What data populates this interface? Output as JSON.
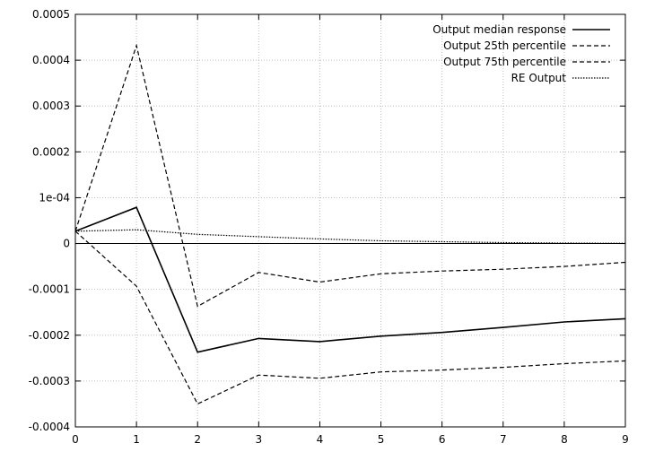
{
  "chart_data": {
    "type": "line",
    "title": "",
    "xlabel": "",
    "ylabel": "",
    "xlim": [
      0,
      9
    ],
    "ylim": [
      -0.0004,
      0.0005
    ],
    "grid": true,
    "legend_position": "top-right",
    "x": [
      0,
      1,
      2,
      3,
      4,
      5,
      6,
      7,
      8,
      9
    ],
    "x_tick_labels": [
      "0",
      "1",
      "2",
      "3",
      "4",
      "5",
      "6",
      "7",
      "8",
      "9"
    ],
    "y_ticks": [
      0.0005,
      0.0004,
      0.0003,
      0.0002,
      0.0001,
      0,
      -0.0001,
      -0.0002,
      -0.0003,
      -0.0004
    ],
    "y_tick_labels": [
      "0.0005",
      "0.0004",
      "0.0003",
      "0.0002",
      "1e-04",
      "0",
      "-0.0001",
      "-0.0002",
      "-0.0003",
      "-0.0004"
    ],
    "series": [
      {
        "name": "Output median response",
        "style": "solid",
        "color": "#000000",
        "values": [
          2.7e-05,
          7.9e-05,
          -0.000237,
          -0.000207,
          -0.000214,
          -0.000202,
          -0.000194,
          -0.000183,
          -0.000171,
          -0.000164
        ]
      },
      {
        "name": "Output 25th percentile",
        "style": "dashed",
        "color": "#000000",
        "values": [
          2.7e-05,
          0.000432,
          -0.000137,
          -6.3e-05,
          -8.4e-05,
          -6.6e-05,
          -6e-05,
          -5.6e-05,
          -5e-05,
          -4.1e-05
        ]
      },
      {
        "name": "Output 75th percentile",
        "style": "dashed",
        "color": "#000000",
        "values": [
          2.7e-05,
          -9.3e-05,
          -0.00035,
          -0.000287,
          -0.000294,
          -0.00028,
          -0.000276,
          -0.00027,
          -0.000262,
          -0.000256
        ]
      },
      {
        "name": "RE Output",
        "style": "dotted",
        "color": "#000000",
        "values": [
          2.7e-05,
          3e-05,
          2e-05,
          1.5e-05,
          1e-05,
          6e-06,
          4e-06,
          2e-06,
          1e-06,
          5e-07
        ]
      }
    ]
  }
}
